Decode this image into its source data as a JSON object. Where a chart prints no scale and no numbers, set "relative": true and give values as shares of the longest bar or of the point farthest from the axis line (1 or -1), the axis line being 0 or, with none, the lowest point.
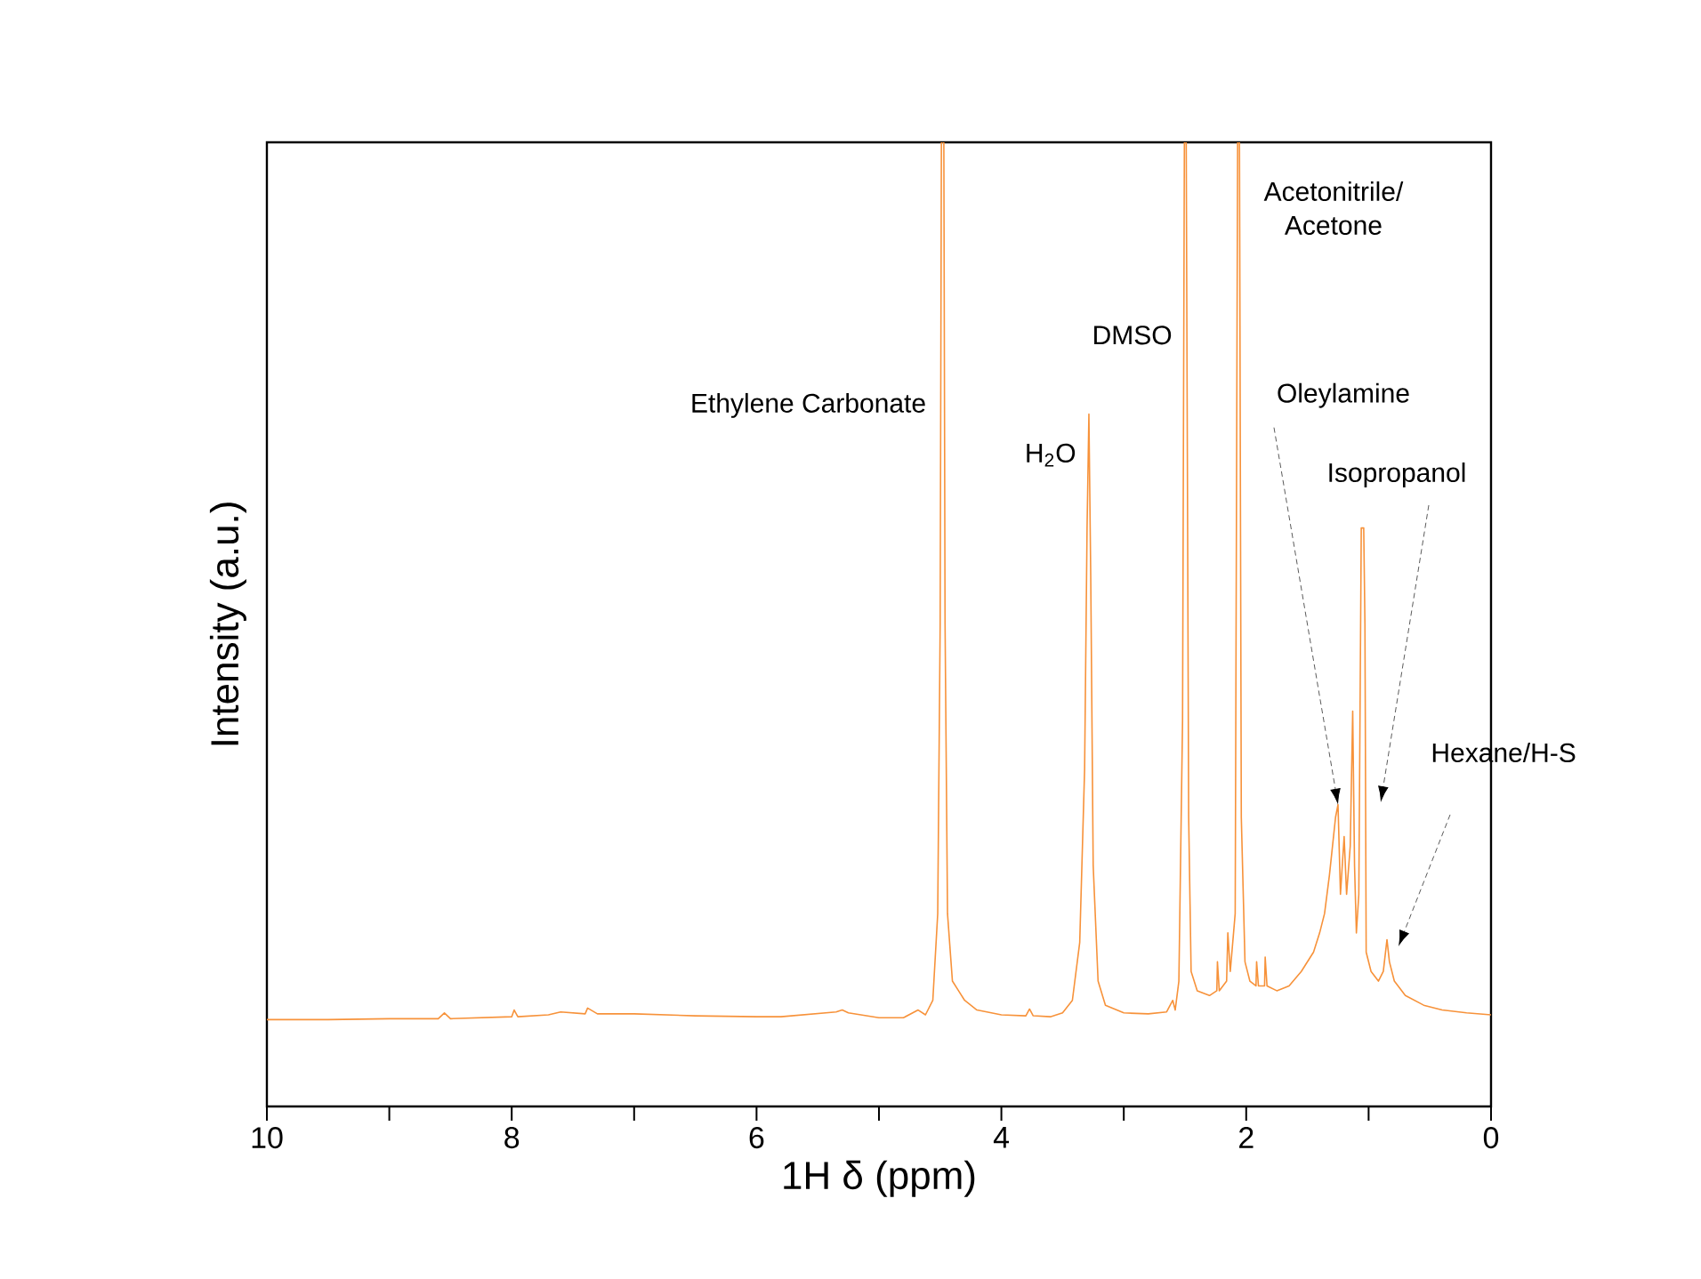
{
  "chart_data": {
    "type": "line",
    "relative": true,
    "xlabel": "1H δ (ppm)",
    "ylabel": "Intensity (a.u.)",
    "xlim": [
      10,
      0
    ],
    "xticks": [
      10,
      {
        "value": 9,
        "label": null
      },
      8,
      {
        "value": 7,
        "label": null
      },
      6,
      {
        "value": 5,
        "label": null
      },
      4,
      {
        "value": 3,
        "label": null
      },
      2,
      {
        "value": 1,
        "label": null
      },
      0
    ],
    "series": [
      {
        "color": "#f7923a",
        "x": [
          10,
          9.5,
          9.0,
          8.6,
          8.55,
          8.5,
          8.0,
          7.98,
          7.95,
          7.7,
          7.6,
          7.4,
          7.38,
          7.3,
          7.0,
          6.5,
          6.0,
          5.8,
          5.35,
          5.3,
          5.25,
          5.0,
          4.8,
          4.68,
          4.62,
          4.56,
          4.52,
          4.5,
          4.49,
          4.47,
          4.46,
          4.44,
          4.4,
          4.35,
          4.3,
          4.2,
          4.0,
          3.8,
          3.77,
          3.74,
          3.6,
          3.5,
          3.42,
          3.36,
          3.32,
          3.3,
          3.285,
          3.27,
          3.25,
          3.21,
          3.15,
          3.0,
          2.8,
          2.65,
          2.6,
          2.58,
          2.55,
          2.52,
          2.505,
          2.49,
          2.47,
          2.45,
          2.4,
          2.3,
          2.24,
          2.235,
          2.22,
          2.16,
          2.15,
          2.13,
          2.09,
          2.07,
          2.055,
          2.04,
          2.01,
          1.97,
          1.92,
          1.915,
          1.9,
          1.85,
          1.845,
          1.83,
          1.75,
          1.65,
          1.55,
          1.45,
          1.4,
          1.36,
          1.32,
          1.27,
          1.25,
          1.23,
          1.2,
          1.18,
          1.15,
          1.13,
          1.115,
          1.1,
          1.08,
          1.06,
          1.04,
          1.03,
          1.02,
          0.98,
          0.92,
          0.88,
          0.85,
          0.83,
          0.79,
          0.7,
          0.55,
          0.4,
          0.2,
          0
        ],
        "values": [
          0.09,
          0.09,
          0.091,
          0.091,
          0.097,
          0.091,
          0.093,
          0.1,
          0.093,
          0.095,
          0.098,
          0.096,
          0.102,
          0.096,
          0.096,
          0.094,
          0.093,
          0.093,
          0.098,
          0.1,
          0.097,
          0.092,
          0.092,
          0.1,
          0.095,
          0.11,
          0.2,
          0.5,
          1.0,
          1.0,
          0.5,
          0.2,
          0.13,
          0.12,
          0.11,
          0.1,
          0.095,
          0.094,
          0.101,
          0.094,
          0.093,
          0.097,
          0.11,
          0.17,
          0.35,
          0.6,
          0.718,
          0.55,
          0.25,
          0.13,
          0.105,
          0.097,
          0.096,
          0.098,
          0.11,
          0.1,
          0.13,
          0.4,
          1.0,
          1.0,
          0.3,
          0.14,
          0.12,
          0.115,
          0.12,
          0.15,
          0.12,
          0.13,
          0.18,
          0.14,
          0.2,
          1.0,
          1.0,
          0.3,
          0.15,
          0.13,
          0.125,
          0.15,
          0.125,
          0.125,
          0.155,
          0.125,
          0.12,
          0.125,
          0.14,
          0.16,
          0.18,
          0.2,
          0.24,
          0.3,
          0.313,
          0.22,
          0.28,
          0.22,
          0.27,
          0.41,
          0.25,
          0.18,
          0.22,
          0.6,
          0.6,
          0.5,
          0.16,
          0.14,
          0.13,
          0.14,
          0.173,
          0.15,
          0.13,
          0.115,
          0.105,
          0.1,
          0.097,
          0.095
        ]
      }
    ],
    "annotations": [
      {
        "text": "Ethylene Carbonate",
        "x": 4.48,
        "y": 0.727
      },
      {
        "text": "H$_{2}$O",
        "x": 3.285,
        "y": 0.718
      },
      {
        "text": "DMSO",
        "x": 2.5,
        "y": 0.8
      },
      {
        "text": "Acetonitrile/\nAcetone",
        "x": 2.06,
        "y": 1.0
      },
      {
        "text": "Oleylamine",
        "x": 1.25,
        "y": 0.313
      },
      "Isopropanol",
      "Hexane/H-S"
    ]
  }
}
